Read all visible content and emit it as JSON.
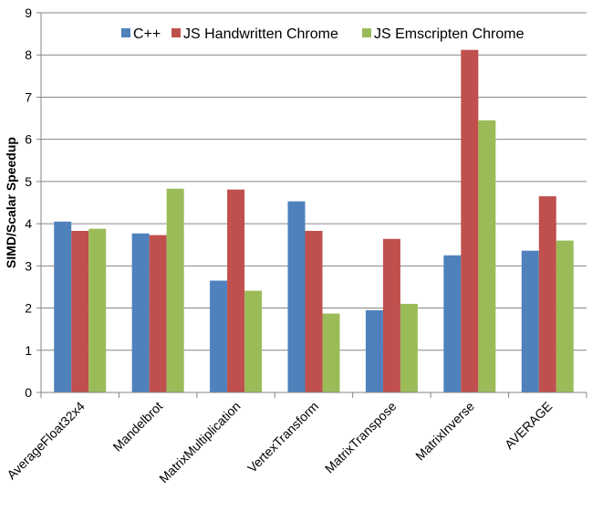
{
  "chart_data": {
    "type": "bar",
    "title": "",
    "xlabel": "",
    "ylabel": "SIMD/Scalar Speedup",
    "ylim": [
      0,
      9
    ],
    "yticks": [
      0,
      1,
      2,
      3,
      4,
      5,
      6,
      7,
      8,
      9
    ],
    "grid": true,
    "legend_position": "top",
    "categories": [
      "AverageFloat32x4",
      "Mandelbrot",
      "MatrixMultiplication",
      "VertexTransform",
      "MatrixTranspose",
      "MatrixInverse",
      "AVERAGE"
    ],
    "series": [
      {
        "name": "C++",
        "color": "#4F81BD",
        "values": [
          4.05,
          3.77,
          2.65,
          4.53,
          1.95,
          3.25,
          3.36
        ]
      },
      {
        "name": "JS Handwritten Chrome",
        "color": "#C0504D",
        "values": [
          3.83,
          3.73,
          4.81,
          3.83,
          3.64,
          8.12,
          4.65
        ]
      },
      {
        "name": "JS Emscripten Chrome",
        "color": "#9BBB59",
        "values": [
          3.88,
          4.83,
          2.41,
          1.87,
          2.1,
          6.45,
          3.6
        ]
      }
    ]
  }
}
